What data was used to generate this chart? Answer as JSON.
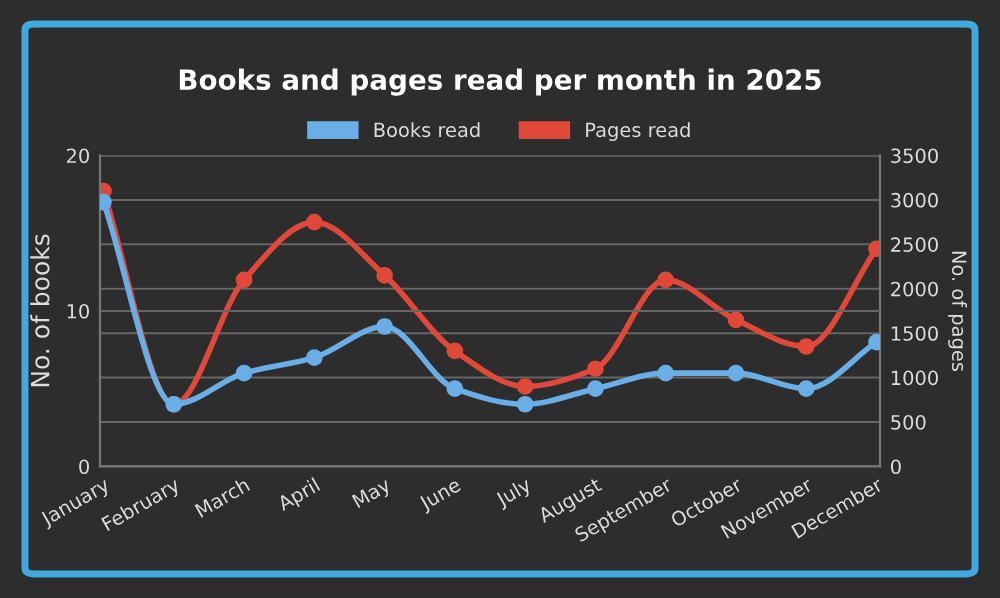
{
  "chart_data": {
    "type": "line",
    "title": "Books and pages read per month in 2025",
    "ylabel": "No. of books",
    "y2label": "No. of pages",
    "categories": [
      "January",
      "February",
      "March",
      "April",
      "May",
      "June",
      "July",
      "August",
      "September",
      "October",
      "November",
      "December"
    ],
    "series": [
      {
        "name": "Books read",
        "color": "#6aaee8",
        "values": [
          17,
          4,
          6,
          7,
          9,
          5,
          4,
          5,
          6,
          6,
          5,
          8
        ]
      },
      {
        "name": "Pages read",
        "color": "#e0483a",
        "axis": "y2",
        "values": [
          3100,
          700,
          2100,
          2750,
          2150,
          1300,
          900,
          1100,
          2100,
          1650,
          1350,
          2450
        ]
      }
    ],
    "ylim": [
      0,
      20
    ],
    "yticks": [
      0,
      10,
      20
    ],
    "y2lim": [
      0,
      3500
    ],
    "y2ticks": [
      0,
      500,
      1000,
      1500,
      2000,
      2500,
      3000,
      3500
    ],
    "grid": "y",
    "legend": "top",
    "marker": "circle",
    "line_style": "solid"
  }
}
